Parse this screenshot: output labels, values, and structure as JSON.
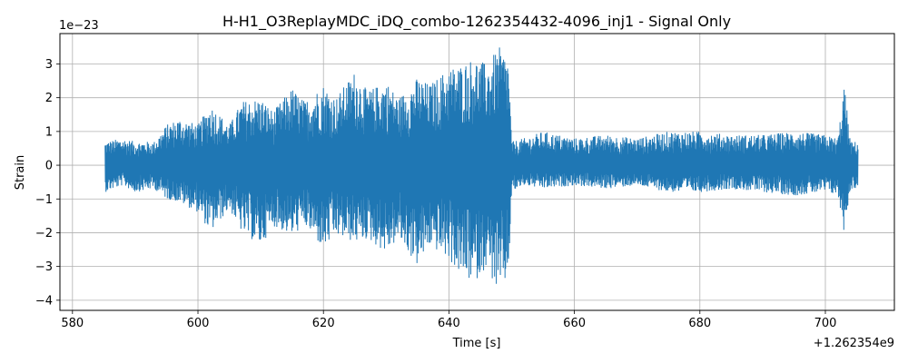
{
  "chart_data": {
    "type": "line",
    "title": "H-H1_O3ReplayMDC_iDQ_combo-1262354432-4096_inj1 - Signal Only",
    "xlabel": "Time [s]",
    "ylabel": "Strain",
    "x_offset_label": "+1.262354e9",
    "y_scale_label": "1e−23",
    "xlim": [
      578,
      711
    ],
    "ylim": [
      -4.3,
      3.9
    ],
    "x_ticks": [
      580,
      600,
      620,
      640,
      660,
      680,
      700
    ],
    "x_tick_labels": [
      "580",
      "600",
      "620",
      "640",
      "660",
      "680",
      "700"
    ],
    "y_ticks": [
      -4,
      -3,
      -2,
      -1,
      0,
      1,
      2,
      3
    ],
    "y_tick_labels": [
      "−4",
      "−3",
      "−2",
      "−1",
      "0",
      "1",
      "2",
      "3"
    ],
    "grid": true,
    "line_color": "#1f77b4",
    "series": [
      {
        "x": [
          585.2,
          588,
          590,
          593,
          595,
          597,
          600,
          602,
          605,
          607,
          610,
          612,
          615,
          617,
          620,
          622,
          625,
          627,
          630,
          632,
          635,
          637,
          640,
          642,
          644,
          646,
          648,
          649.5,
          650,
          652,
          655,
          660,
          665,
          670,
          675,
          680,
          685,
          690,
          695,
          700,
          702,
          703,
          704,
          705.2
        ],
        "y_max": [
          0.7,
          0.8,
          0.7,
          0.7,
          1.2,
          1.4,
          1.2,
          1.8,
          1.2,
          1.9,
          2.0,
          1.6,
          2.3,
          1.9,
          2.4,
          2.0,
          2.8,
          2.2,
          2.5,
          2.0,
          2.6,
          2.4,
          2.9,
          3.0,
          3.2,
          3.0,
          3.5,
          3.2,
          0.7,
          0.8,
          1.0,
          0.8,
          0.9,
          0.8,
          1.0,
          1.0,
          0.9,
          0.9,
          1.0,
          0.9,
          0.8,
          2.4,
          0.7,
          0.7
        ],
        "y_min": [
          -0.8,
          -0.6,
          -0.8,
          -0.7,
          -1.0,
          -1.1,
          -1.4,
          -2.0,
          -1.3,
          -2.0,
          -2.4,
          -1.8,
          -2.1,
          -1.8,
          -2.5,
          -2.1,
          -2.3,
          -2.2,
          -2.6,
          -2.2,
          -3.0,
          -2.4,
          -2.8,
          -3.3,
          -3.5,
          -3.0,
          -3.9,
          -3.3,
          -0.8,
          -0.6,
          -0.7,
          -0.6,
          -0.7,
          -0.6,
          -0.8,
          -0.8,
          -0.7,
          -0.8,
          -0.9,
          -0.8,
          -0.9,
          -2.0,
          -0.7,
          -0.7
        ]
      }
    ]
  }
}
